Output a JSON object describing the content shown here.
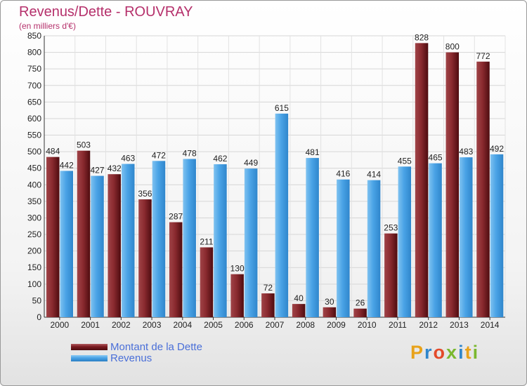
{
  "title": "Revenus/Dette - ROUVRAY",
  "subtitle": "(en milliers d'€)",
  "logo_text": "Proxiti",
  "colors": {
    "dette": "#7a1a1f",
    "revenus": "#4aa3e6",
    "title": "#b5306b",
    "legend_text": "#4a6fd8"
  },
  "chart_data": {
    "type": "bar",
    "categories": [
      "2000",
      "2001",
      "2002",
      "2003",
      "2004",
      "2005",
      "2006",
      "2007",
      "2008",
      "2009",
      "2010",
      "2011",
      "2012",
      "2013",
      "2014"
    ],
    "series": [
      {
        "name": "Montant de la Dette",
        "values": [
          484,
          503,
          432,
          356,
          287,
          211,
          130,
          72,
          40,
          30,
          26,
          253,
          828,
          800,
          772
        ]
      },
      {
        "name": "Revenus",
        "values": [
          442,
          427,
          463,
          472,
          478,
          462,
          449,
          615,
          481,
          416,
          414,
          455,
          465,
          483,
          492
        ]
      }
    ],
    "ylim": [
      0,
      850
    ],
    "yticks": [
      0,
      50,
      100,
      150,
      200,
      250,
      300,
      350,
      400,
      450,
      500,
      550,
      600,
      650,
      700,
      750,
      800,
      850
    ],
    "grid": true,
    "legend_position": "bottom-left"
  }
}
